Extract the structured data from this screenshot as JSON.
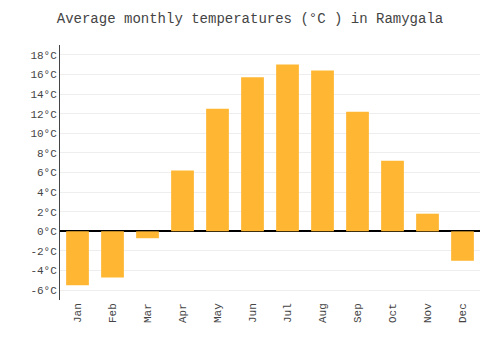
{
  "chart_data": {
    "type": "bar",
    "title": "Average monthly temperatures (°C ) in Ramygala",
    "categories": [
      "Jan",
      "Feb",
      "Mar",
      "Apr",
      "May",
      "Jun",
      "Jul",
      "Aug",
      "Sep",
      "Oct",
      "Nov",
      "Dec"
    ],
    "values": [
      -5.5,
      -4.7,
      -0.7,
      6.2,
      12.5,
      15.7,
      17.0,
      16.4,
      12.2,
      7.2,
      1.8,
      -3.0
    ],
    "color": "#FFB733",
    "ylim": [
      -7,
      19
    ],
    "yticks": [
      {
        "value": -6,
        "label": "-6°C"
      },
      {
        "value": -4,
        "label": "-4°C"
      },
      {
        "value": -2,
        "label": "-2°C"
      },
      {
        "value": 0,
        "label": "0°C"
      },
      {
        "value": 2,
        "label": "2°C"
      },
      {
        "value": 4,
        "label": "4°C"
      },
      {
        "value": 6,
        "label": "6°C"
      },
      {
        "value": 8,
        "label": "8°C"
      },
      {
        "value": 10,
        "label": "10°C"
      },
      {
        "value": 12,
        "label": "12°C"
      },
      {
        "value": 14,
        "label": "14°C"
      },
      {
        "value": 16,
        "label": "16°C"
      },
      {
        "value": 18,
        "label": "18°C"
      }
    ],
    "grid": true
  }
}
